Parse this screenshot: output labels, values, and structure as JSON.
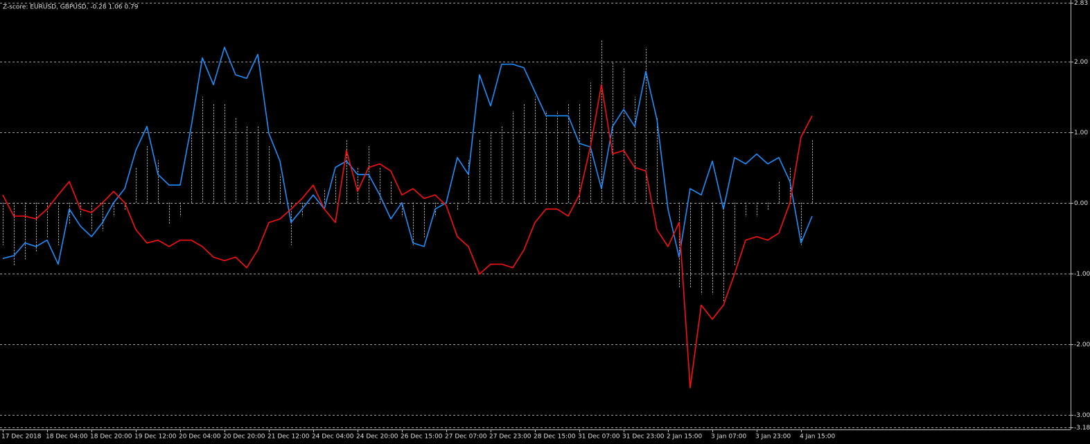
{
  "chart_data": {
    "type": "line",
    "title": "Z-score: EURUSD, GBPUSD,  -0.28 1.06 0.79",
    "categories": [
      "17 Dec 2018",
      null,
      null,
      null,
      "18 Dec 04:00",
      null,
      null,
      null,
      "18 Dec 20:00",
      null,
      null,
      null,
      "19 Dec 12:00",
      null,
      null,
      null,
      "20 Dec 04:00",
      null,
      null,
      null,
      "20 Dec 20:00",
      null,
      null,
      null,
      "21 Dec 12:00",
      null,
      null,
      null,
      "24 Dec 04:00",
      null,
      null,
      null,
      "24 Dec 20:00",
      null,
      null,
      null,
      "26 Dec 15:00",
      null,
      null,
      null,
      "27 Dec 07:00",
      null,
      null,
      null,
      "27 Dec 23:00",
      null,
      null,
      null,
      "28 Dec 15:00",
      null,
      null,
      null,
      "31 Dec 07:00",
      null,
      null,
      null,
      "31 Dec 23:00",
      null,
      null,
      null,
      "2 Jan 15:00",
      null,
      null,
      null,
      "3 Jan 07:00",
      null,
      null,
      null,
      "3 Jan 23:00",
      null,
      null,
      null,
      "4 Jan 15:00",
      null
    ],
    "series": [
      {
        "type": "bar",
        "color": "#c8c8c8",
        "values": [
          -0.6,
          -0.9,
          -0.8,
          -0.7,
          -0.5,
          -0.6,
          -0.3,
          -0.2,
          -0.4,
          -0.4,
          -0.2,
          -0.1,
          0.5,
          0.8,
          0.6,
          -0.3,
          -0.2,
          1.0,
          1.5,
          1.4,
          1.4,
          1.2,
          1.1,
          1.1,
          0.8,
          0.4,
          -0.6,
          -0.2,
          0.0,
          0.2,
          0.4,
          0.9,
          0.5,
          0.8,
          0.5,
          0.3,
          -0.2,
          -0.6,
          -0.5,
          -0.2,
          0.0,
          -0.1,
          0.6,
          0.9,
          1.0,
          1.1,
          1.3,
          1.4,
          1.5,
          1.3,
          1.3,
          1.4,
          1.4,
          1.7,
          2.3,
          2.0,
          1.9,
          1.5,
          2.2,
          1.2,
          0.0,
          -1.2,
          -1.2,
          -1.3,
          -1.3,
          -1.4,
          -0.9,
          -0.2,
          -0.2,
          -0.1,
          0.3,
          0.5,
          -0.6,
          0.9
        ]
      },
      {
        "type": "line",
        "color": "#1e90ff",
        "values": [
          -0.79,
          -0.75,
          -0.57,
          -0.62,
          -0.53,
          -0.87,
          -0.09,
          -0.33,
          -0.48,
          -0.28,
          0.0,
          0.2,
          0.74,
          1.08,
          0.4,
          0.25,
          0.25,
          1.08,
          2.05,
          1.67,
          2.2,
          1.81,
          1.76,
          2.1,
          0.98,
          0.59,
          -0.28,
          -0.09,
          0.11,
          -0.09,
          0.5,
          0.59,
          0.4,
          0.4,
          0.11,
          -0.23,
          0.0,
          -0.57,
          -0.62,
          -0.09,
          0.0,
          0.64,
          0.4,
          1.81,
          1.37,
          1.96,
          1.96,
          1.91,
          1.57,
          1.23,
          1.23,
          1.23,
          0.84,
          0.79,
          0.2,
          1.08,
          1.32,
          1.08,
          1.86,
          1.18,
          -0.09,
          -0.77,
          0.2,
          0.11,
          0.59,
          -0.09,
          0.64,
          0.55,
          0.69,
          0.55,
          0.64,
          0.3,
          -0.57,
          -0.19
        ]
      },
      {
        "type": "line",
        "color": "#ff1010",
        "values": [
          0.11,
          -0.19,
          -0.19,
          -0.23,
          -0.09,
          0.11,
          0.3,
          -0.09,
          -0.14,
          0.0,
          0.16,
          0.0,
          -0.38,
          -0.57,
          -0.53,
          -0.62,
          -0.53,
          -0.53,
          -0.62,
          -0.77,
          -0.82,
          -0.77,
          -0.92,
          -0.67,
          -0.28,
          -0.23,
          -0.09,
          0.06,
          0.25,
          -0.09,
          -0.28,
          0.74,
          0.16,
          0.5,
          0.55,
          0.45,
          0.11,
          0.2,
          0.06,
          0.11,
          -0.04,
          -0.48,
          -0.62,
          -1.01,
          -0.87,
          -0.87,
          -0.92,
          -0.67,
          -0.28,
          -0.09,
          -0.09,
          -0.19,
          0.11,
          0.79,
          1.67,
          0.69,
          0.74,
          0.5,
          0.45,
          -0.38,
          -0.62,
          -0.28,
          -2.62,
          -1.45,
          -1.65,
          -1.45,
          -1.01,
          -0.53,
          -0.48,
          -0.53,
          -0.43,
          0.0,
          0.93,
          1.23
        ]
      }
    ],
    "ylim": [
      -3.18,
      2.83
    ],
    "yticks": [
      2.83,
      {
        "value": 2,
        "label": "2.00"
      },
      {
        "value": 1,
        "label": "1.00"
      },
      {
        "value": 0,
        "label": "0.00"
      },
      {
        "value": -1,
        "label": "-1.00"
      },
      {
        "value": -2,
        "label": "-2.00"
      },
      {
        "value": -3,
        "label": "-3.00"
      },
      -3.18
    ],
    "grid": true
  }
}
